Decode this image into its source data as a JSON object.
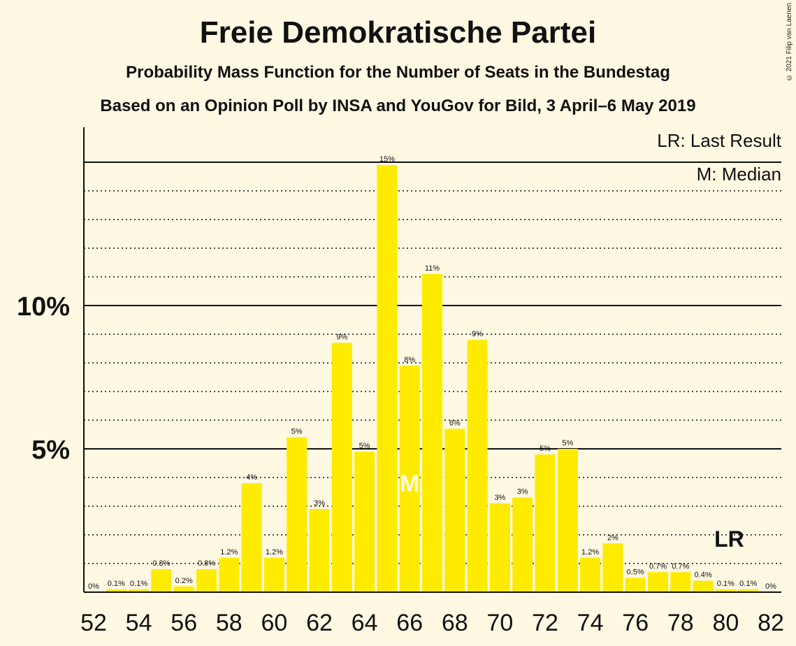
{
  "header": {
    "title": "Freie Demokratische Partei",
    "subtitle": "Probability Mass Function for the Number of Seats in the Bundestag",
    "source": "Based on an Opinion Poll by INSA and YouGov for Bild, 3 April–6 May 2019",
    "copyright": "© 2021 Filip van Laenen"
  },
  "legend": {
    "lr": "LR: Last Result",
    "median": "M: Median"
  },
  "colors": {
    "bar": "#FFEB00",
    "background": "#FFF8E3",
    "text": "#111111"
  },
  "chart_data": {
    "type": "bar",
    "title": "Freie Demokratische Partei",
    "xlabel": "",
    "ylabel": "",
    "categories": [
      52,
      53,
      54,
      55,
      56,
      57,
      58,
      59,
      60,
      61,
      62,
      63,
      64,
      65,
      66,
      67,
      68,
      69,
      70,
      71,
      72,
      73,
      74,
      75,
      76,
      77,
      78,
      79,
      80,
      81,
      82
    ],
    "values": [
      0.0,
      0.1,
      0.1,
      0.8,
      0.2,
      0.8,
      1.2,
      3.8,
      1.2,
      5.4,
      2.9,
      8.7,
      4.9,
      14.9,
      7.9,
      11.1,
      5.7,
      8.8,
      3.1,
      3.3,
      4.8,
      5.0,
      1.2,
      1.7,
      0.5,
      0.7,
      0.7,
      0.4,
      0.1,
      0.1,
      0.0
    ],
    "labels": [
      "0%",
      "0.1%",
      "0.1%",
      "0.8%",
      "0.2%",
      "0.8%",
      "1.2%",
      "4%",
      "1.2%",
      "5%",
      "3%",
      "9%",
      "5%",
      "15%",
      "8%",
      "11%",
      "6%",
      "9%",
      "3%",
      "3%",
      "5%",
      "5%",
      "1.2%",
      "2%",
      "0.5%",
      "0.7%",
      "0.7%",
      "0.4%",
      "0.1%",
      "0.1%",
      "0%"
    ],
    "x_tick_labels": [
      "52",
      "54",
      "56",
      "58",
      "60",
      "62",
      "64",
      "66",
      "68",
      "70",
      "72",
      "74",
      "76",
      "78",
      "80",
      "82"
    ],
    "y_tick_labels": [
      {
        "value": 5,
        "label": "5%"
      },
      {
        "value": 10,
        "label": "10%"
      }
    ],
    "ylim": [
      0,
      16
    ],
    "median_seat": 66,
    "median_label": "M",
    "last_result_seat": 80,
    "last_result_label": "LR",
    "grid": true
  }
}
